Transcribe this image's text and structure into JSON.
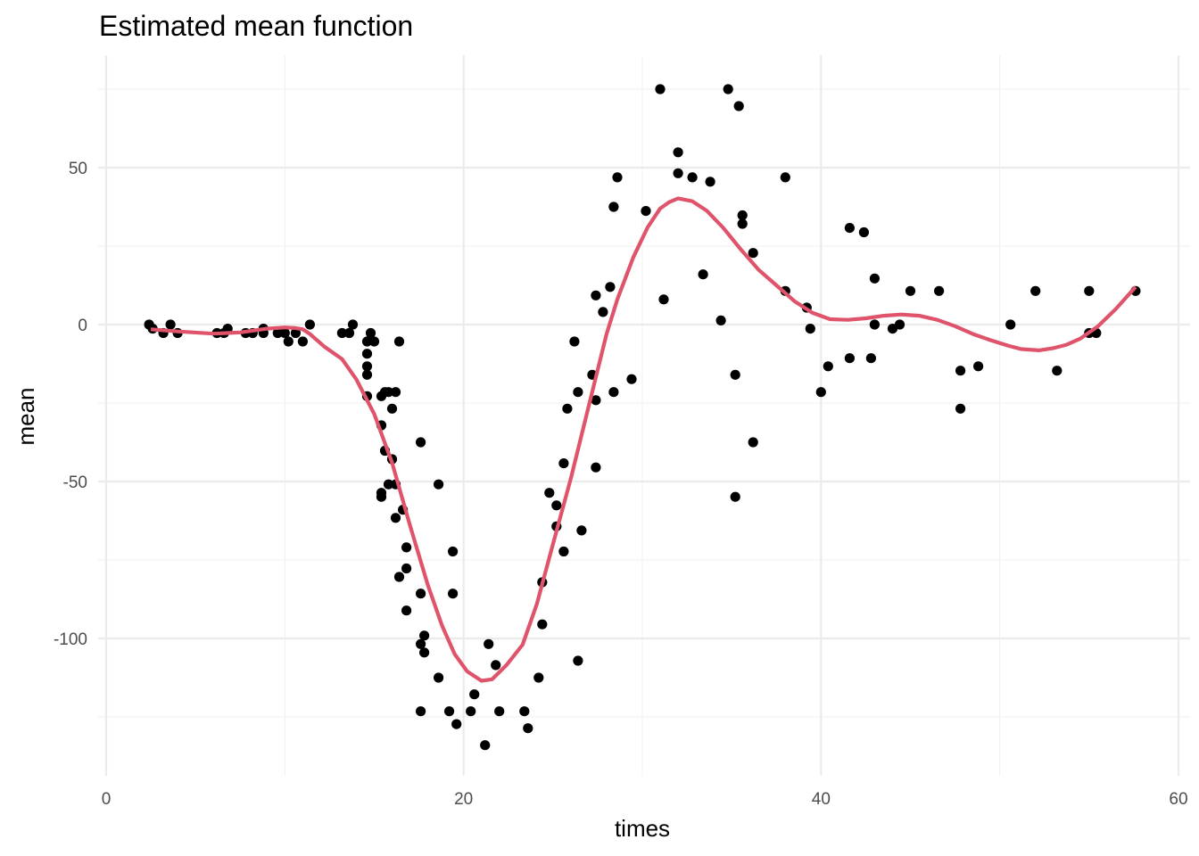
{
  "chart_data": {
    "type": "scatter",
    "title": "Estimated mean function",
    "xlabel": "times",
    "ylabel": "mean",
    "xlim": [
      0,
      60
    ],
    "ylim": [
      -143,
      86
    ],
    "x_ticks": [
      0,
      20,
      40,
      60
    ],
    "x_tick_labels": [
      "0",
      "20",
      "40",
      "60"
    ],
    "y_ticks": [
      -100,
      -50,
      0,
      50
    ],
    "y_tick_labels": [
      "-100",
      "-50",
      "0",
      "50"
    ],
    "grid": true,
    "legend": "none",
    "colors": {
      "points": "#000000",
      "line": "#DF536B"
    },
    "series": [
      {
        "type": "scatter",
        "points": [
          [
            2.4,
            0.0
          ],
          [
            2.6,
            -1.3
          ],
          [
            3.2,
            -2.7
          ],
          [
            3.6,
            0.0
          ],
          [
            4.0,
            -2.7
          ],
          [
            6.2,
            -2.7
          ],
          [
            6.6,
            -2.7
          ],
          [
            6.8,
            -1.3
          ],
          [
            7.8,
            -2.7
          ],
          [
            8.2,
            -2.7
          ],
          [
            8.8,
            -1.3
          ],
          [
            8.8,
            -2.7
          ],
          [
            9.6,
            -2.7
          ],
          [
            10.0,
            -2.7
          ],
          [
            10.2,
            -5.4
          ],
          [
            10.6,
            -2.7
          ],
          [
            11.0,
            -5.4
          ],
          [
            11.4,
            0.0
          ],
          [
            13.2,
            -2.7
          ],
          [
            13.6,
            -2.7
          ],
          [
            13.8,
            0.0
          ],
          [
            14.6,
            -5.4
          ],
          [
            14.6,
            -9.3
          ],
          [
            14.6,
            -13.3
          ],
          [
            14.6,
            -16.0
          ],
          [
            14.6,
            -22.8
          ],
          [
            14.8,
            -2.7
          ],
          [
            15.0,
            -5.4
          ],
          [
            15.4,
            -22.8
          ],
          [
            15.4,
            -32.1
          ],
          [
            15.6,
            -21.5
          ],
          [
            15.6,
            -40.2
          ],
          [
            15.8,
            -21.5
          ],
          [
            15.8,
            -50.9
          ],
          [
            16.0,
            -26.8
          ],
          [
            16.0,
            -42.9
          ],
          [
            16.2,
            -21.5
          ],
          [
            16.2,
            -61.6
          ],
          [
            16.2,
            -50.9
          ],
          [
            16.4,
            -5.4
          ],
          [
            16.4,
            -80.4
          ],
          [
            16.6,
            -59.0
          ],
          [
            16.8,
            -71.0
          ],
          [
            16.8,
            -77.7
          ],
          [
            16.8,
            -91.1
          ],
          [
            15.4,
            -53.6
          ],
          [
            15.4,
            -54.9
          ],
          [
            17.6,
            -37.5
          ],
          [
            17.6,
            -85.7
          ],
          [
            17.6,
            -101.8
          ],
          [
            17.6,
            -123.2
          ],
          [
            17.8,
            -99.1
          ],
          [
            17.8,
            -104.5
          ],
          [
            18.6,
            -50.9
          ],
          [
            18.6,
            -112.5
          ],
          [
            19.2,
            -123.2
          ],
          [
            19.4,
            -72.3
          ],
          [
            19.4,
            -85.7
          ],
          [
            19.6,
            -127.3
          ],
          [
            20.4,
            -123.2
          ],
          [
            20.6,
            -117.8
          ],
          [
            21.2,
            -134.0
          ],
          [
            21.4,
            -101.8
          ],
          [
            21.8,
            -108.5
          ],
          [
            22.0,
            -123.2
          ],
          [
            23.4,
            -123.2
          ],
          [
            23.6,
            -128.6
          ],
          [
            24.2,
            -112.5
          ],
          [
            24.4,
            -82.1
          ],
          [
            24.4,
            -95.5
          ],
          [
            24.8,
            -53.6
          ],
          [
            25.2,
            -57.6
          ],
          [
            25.2,
            -64.3
          ],
          [
            25.6,
            -44.2
          ],
          [
            25.6,
            -72.3
          ],
          [
            25.8,
            -26.8
          ],
          [
            26.2,
            -5.4
          ],
          [
            26.4,
            -21.5
          ],
          [
            26.4,
            -107.1
          ],
          [
            26.6,
            -65.6
          ],
          [
            27.2,
            -16.0
          ],
          [
            27.4,
            9.3
          ],
          [
            27.4,
            -24.1
          ],
          [
            27.4,
            -45.5
          ],
          [
            27.8,
            4.0
          ],
          [
            28.2,
            12.0
          ],
          [
            28.4,
            37.5
          ],
          [
            28.4,
            -21.5
          ],
          [
            28.6,
            46.9
          ],
          [
            29.4,
            -17.4
          ],
          [
            30.2,
            36.2
          ],
          [
            31.0,
            75.0
          ],
          [
            31.2,
            8.0
          ],
          [
            32.0,
            48.2
          ],
          [
            32.0,
            54.9
          ],
          [
            32.8,
            46.9
          ],
          [
            33.4,
            16.0
          ],
          [
            33.8,
            45.5
          ],
          [
            34.4,
            1.3
          ],
          [
            34.8,
            75.0
          ],
          [
            35.2,
            -16.0
          ],
          [
            35.2,
            -54.9
          ],
          [
            35.4,
            69.6
          ],
          [
            35.6,
            34.8
          ],
          [
            35.6,
            32.1
          ],
          [
            36.2,
            22.8
          ],
          [
            36.2,
            -37.5
          ],
          [
            38.0,
            46.9
          ],
          [
            38.0,
            10.7
          ],
          [
            39.2,
            5.4
          ],
          [
            39.4,
            -1.3
          ],
          [
            40.0,
            -21.5
          ],
          [
            40.4,
            -13.3
          ],
          [
            41.6,
            30.8
          ],
          [
            41.6,
            -10.7
          ],
          [
            42.4,
            29.4
          ],
          [
            42.8,
            -10.7
          ],
          [
            43.0,
            0.0
          ],
          [
            43.0,
            14.7
          ],
          [
            44.0,
            -1.3
          ],
          [
            44.4,
            0.0
          ],
          [
            45.0,
            10.7
          ],
          [
            46.6,
            10.7
          ],
          [
            47.8,
            -14.7
          ],
          [
            47.8,
            -26.8
          ],
          [
            48.8,
            -13.3
          ],
          [
            50.6,
            0.0
          ],
          [
            52.0,
            10.7
          ],
          [
            53.2,
            -14.7
          ],
          [
            55.0,
            10.7
          ],
          [
            55.0,
            -2.7
          ],
          [
            55.4,
            -2.7
          ],
          [
            57.6,
            10.7
          ]
        ]
      },
      {
        "type": "line",
        "points": [
          [
            2.5,
            -1.5
          ],
          [
            4.0,
            -2.2
          ],
          [
            6.0,
            -2.9
          ],
          [
            7.5,
            -2.5
          ],
          [
            9.0,
            -1.3
          ],
          [
            10.0,
            -0.9
          ],
          [
            10.6,
            -1.1
          ],
          [
            11.0,
            -1.5
          ],
          [
            11.4,
            -3.0
          ],
          [
            12.2,
            -7.0
          ],
          [
            13.2,
            -11.0
          ],
          [
            14.0,
            -17.5
          ],
          [
            15.0,
            -28.5
          ],
          [
            16.0,
            -44.0
          ],
          [
            17.0,
            -64.0
          ],
          [
            18.0,
            -83.0
          ],
          [
            18.8,
            -96.0
          ],
          [
            19.5,
            -105.0
          ],
          [
            20.2,
            -110.5
          ],
          [
            21.0,
            -113.5
          ],
          [
            21.6,
            -113.0
          ],
          [
            22.4,
            -108.5
          ],
          [
            23.3,
            -102.0
          ],
          [
            24.1,
            -89.0
          ],
          [
            25.0,
            -70.0
          ],
          [
            26.0,
            -49.0
          ],
          [
            27.0,
            -26.0
          ],
          [
            28.0,
            -3.0
          ],
          [
            28.6,
            8.0
          ],
          [
            29.5,
            21.5
          ],
          [
            30.3,
            31.0
          ],
          [
            31.0,
            37.0
          ],
          [
            31.5,
            39.0
          ],
          [
            32.0,
            40.2
          ],
          [
            32.8,
            39.3
          ],
          [
            33.6,
            36.3
          ],
          [
            34.5,
            31.0
          ],
          [
            35.5,
            24.0
          ],
          [
            36.5,
            17.5
          ],
          [
            37.5,
            12.5
          ],
          [
            38.5,
            7.5
          ],
          [
            39.5,
            3.8
          ],
          [
            40.5,
            1.7
          ],
          [
            41.5,
            1.5
          ],
          [
            42.5,
            2.0
          ],
          [
            43.5,
            2.8
          ],
          [
            44.5,
            3.2
          ],
          [
            45.5,
            2.8
          ],
          [
            46.5,
            1.5
          ],
          [
            47.5,
            -0.5
          ],
          [
            48.5,
            -3.0
          ],
          [
            49.5,
            -5.0
          ],
          [
            50.5,
            -6.8
          ],
          [
            51.2,
            -7.8
          ],
          [
            52.2,
            -8.2
          ],
          [
            53.0,
            -7.5
          ],
          [
            53.7,
            -6.5
          ],
          [
            54.5,
            -4.5
          ],
          [
            55.5,
            -0.5
          ],
          [
            56.5,
            5.0
          ],
          [
            57.6,
            12.0
          ]
        ]
      }
    ]
  }
}
